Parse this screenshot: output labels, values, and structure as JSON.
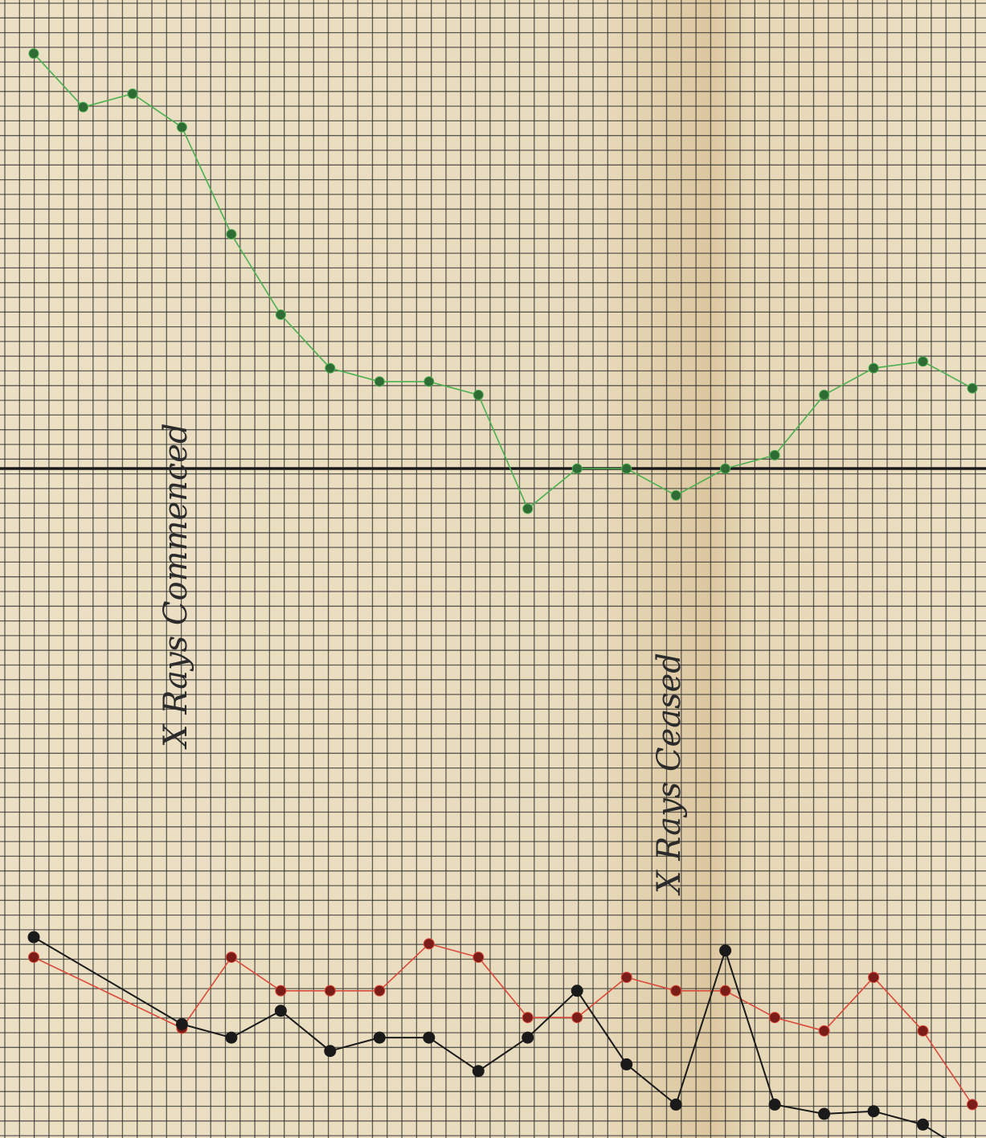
{
  "colors": {
    "paper": "#e9dcc0",
    "grid": "#2e2e2e",
    "green_series": "#4caf50",
    "green_points": "#2f6b34",
    "red_series": "#d94a3a",
    "red_points": "#7a1c17",
    "black_series": "#1a1a1a",
    "baseline": "#1a1a1a"
  },
  "chart_data": {
    "type": "line",
    "grid": true,
    "x": [
      1,
      2,
      3,
      4,
      5,
      6,
      7,
      8,
      9,
      10,
      11,
      12,
      13,
      14,
      15,
      16,
      17,
      18,
      19,
      20
    ],
    "xlim": [
      0.5,
      20.5
    ],
    "ylim": [
      -5,
      80
    ],
    "baseline_y": 45,
    "annotations": [
      {
        "text": "X Rays Commenced",
        "x": 4
      },
      {
        "text": "X Rays Ceased",
        "x": 14
      }
    ],
    "series": [
      {
        "key": "green",
        "values": [
          76,
          72,
          73,
          70.5,
          62.5,
          56.5,
          52.5,
          51.5,
          51.5,
          50.5,
          42,
          45,
          45,
          43,
          45,
          46,
          50.5,
          52.5,
          53,
          51
        ]
      },
      {
        "key": "red",
        "values": [
          8.5,
          null,
          null,
          3.2,
          8.5,
          6,
          6,
          6,
          9.5,
          8.5,
          4,
          4,
          7,
          6,
          6,
          4,
          3,
          7,
          3,
          -2.5
        ]
      },
      {
        "key": "black",
        "values": [
          10,
          null,
          null,
          3.5,
          2.5,
          4.5,
          1.5,
          2.5,
          2.5,
          0,
          2.5,
          6,
          0.5,
          -2.5,
          9,
          -2.5,
          -3.2,
          -3,
          -4,
          -6.3
        ]
      }
    ]
  }
}
